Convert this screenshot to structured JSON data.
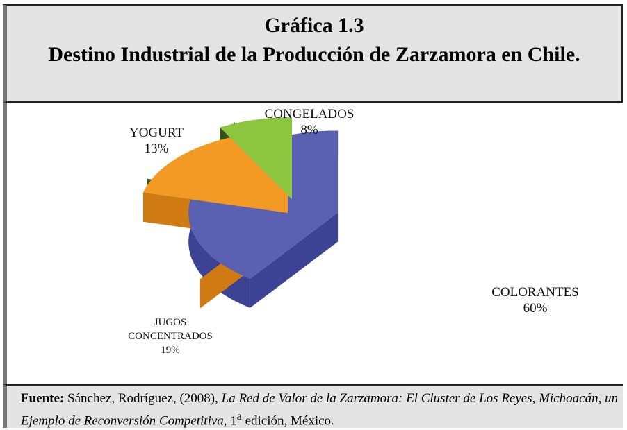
{
  "chart_data": {
    "type": "pie",
    "title_number": "Gráfica 1.3",
    "title": "Destino Industrial de la Producción de Zarzamora en Chile.",
    "categories": [
      "COLORANTES",
      "JUGOS CONCENTRADOS",
      "YOGURT",
      "CONGELADOS"
    ],
    "values": [
      60,
      19,
      13,
      8
    ],
    "value_labels": [
      "60%",
      "19%",
      "13%",
      "8%"
    ],
    "colors": [
      "#5a60b2",
      "#f29a24",
      "#8cc63e",
      "#8f4c9f"
    ],
    "side_colors": [
      "#3c4395",
      "#cf7a12",
      "#34511a",
      "#5c2a6c"
    ]
  },
  "source": {
    "label": "Fuente:",
    "authors": "Sánchez, Rodríguez, (2008),",
    "work": "La Red de Valor de la Zarzamora: El Cluster de Los Reyes, Michoacán, un Ejemplo de Reconversión Competitiva",
    "edition": ", 1",
    "sup": "a",
    "rest": "edición, México."
  }
}
